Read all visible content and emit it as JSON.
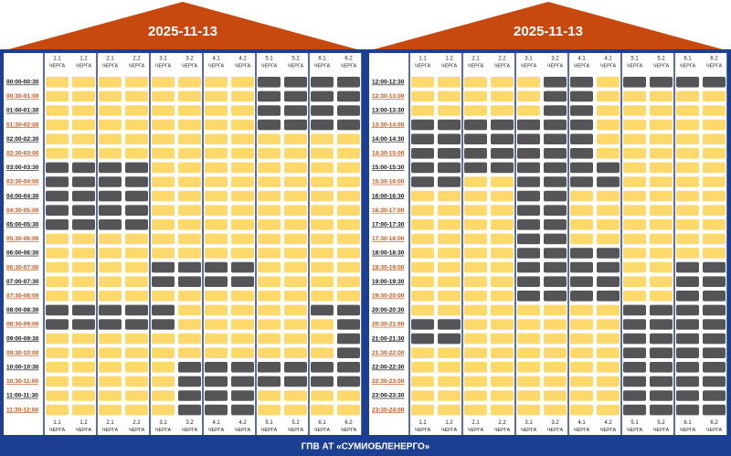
{
  "panels": [
    {
      "date": "2025-11-13",
      "columns": [
        "1.1",
        "1.2",
        "2.1",
        "2.2",
        "3.1",
        "3.2",
        "4.1",
        "4.2",
        "5.1",
        "5.2",
        "6.1",
        "6.2"
      ],
      "column_word": "ЧЕРГА",
      "rows": [
        {
          "time": "00:00-00:30",
          "off": [
            0,
            0,
            0,
            0,
            0,
            0,
            0,
            0,
            1,
            1,
            1,
            1
          ]
        },
        {
          "time": "00:30-01:00",
          "off": [
            0,
            0,
            0,
            0,
            0,
            0,
            0,
            0,
            1,
            1,
            1,
            1
          ]
        },
        {
          "time": "01:00-01:30",
          "off": [
            0,
            0,
            0,
            0,
            0,
            0,
            0,
            0,
            1,
            1,
            1,
            1
          ]
        },
        {
          "time": "01:30-02:00",
          "off": [
            0,
            0,
            0,
            0,
            0,
            0,
            0,
            0,
            1,
            1,
            1,
            1
          ]
        },
        {
          "time": "02:00-02:30",
          "off": [
            0,
            0,
            0,
            0,
            0,
            0,
            0,
            0,
            0,
            0,
            0,
            0
          ]
        },
        {
          "time": "02:30-03:00",
          "off": [
            0,
            0,
            0,
            0,
            0,
            0,
            0,
            0,
            0,
            0,
            0,
            0
          ]
        },
        {
          "time": "03:00-03:30",
          "off": [
            1,
            1,
            1,
            1,
            0,
            0,
            0,
            0,
            0,
            0,
            0,
            0
          ]
        },
        {
          "time": "03:30-04:00",
          "off": [
            1,
            1,
            1,
            1,
            0,
            0,
            0,
            0,
            0,
            0,
            0,
            0
          ]
        },
        {
          "time": "04:00-04:30",
          "off": [
            1,
            1,
            1,
            1,
            0,
            0,
            0,
            0,
            0,
            0,
            0,
            0
          ]
        },
        {
          "time": "04:30-05:00",
          "off": [
            1,
            1,
            1,
            1,
            0,
            0,
            0,
            0,
            0,
            0,
            0,
            0
          ]
        },
        {
          "time": "05:00-05:30",
          "off": [
            1,
            1,
            1,
            1,
            0,
            0,
            0,
            0,
            0,
            0,
            0,
            0
          ]
        },
        {
          "time": "05:30-06:00",
          "off": [
            0,
            0,
            0,
            0,
            0,
            0,
            0,
            0,
            0,
            0,
            0,
            0
          ]
        },
        {
          "time": "06:00-06:30",
          "off": [
            0,
            0,
            0,
            0,
            0,
            0,
            0,
            0,
            0,
            0,
            0,
            0
          ]
        },
        {
          "time": "06:30-07:00",
          "off": [
            0,
            0,
            0,
            0,
            1,
            1,
            1,
            1,
            0,
            0,
            0,
            0
          ]
        },
        {
          "time": "07:00-07:30",
          "off": [
            0,
            0,
            0,
            0,
            1,
            1,
            1,
            1,
            0,
            0,
            0,
            0
          ]
        },
        {
          "time": "07:30-08:00",
          "off": [
            0,
            0,
            0,
            0,
            0,
            0,
            0,
            0,
            0,
            0,
            0,
            0
          ]
        },
        {
          "time": "08:00-08:30",
          "off": [
            1,
            1,
            1,
            1,
            1,
            0,
            0,
            0,
            0,
            0,
            1,
            1
          ]
        },
        {
          "time": "08:30-09:00",
          "off": [
            1,
            1,
            1,
            1,
            1,
            0,
            0,
            0,
            0,
            0,
            0,
            1
          ]
        },
        {
          "time": "09:00-09:30",
          "off": [
            0,
            0,
            0,
            0,
            0,
            0,
            0,
            0,
            0,
            0,
            0,
            1
          ]
        },
        {
          "time": "09:30-10:00",
          "off": [
            0,
            0,
            0,
            0,
            0,
            0,
            0,
            0,
            0,
            0,
            0,
            1
          ]
        },
        {
          "time": "10:00-10:30",
          "off": [
            0,
            0,
            0,
            0,
            0,
            1,
            1,
            1,
            1,
            1,
            1,
            1
          ]
        },
        {
          "time": "10:30-11:00",
          "off": [
            0,
            0,
            0,
            0,
            0,
            1,
            1,
            1,
            1,
            1,
            1,
            1
          ]
        },
        {
          "time": "11:00-11:30",
          "off": [
            0,
            0,
            0,
            0,
            0,
            1,
            1,
            1,
            0,
            0,
            0,
            0
          ]
        },
        {
          "time": "11:30-12:00",
          "off": [
            0,
            0,
            0,
            0,
            0,
            1,
            1,
            1,
            0,
            0,
            0,
            0
          ]
        }
      ]
    },
    {
      "date": "2025-11-13",
      "columns": [
        "1.1",
        "1.2",
        "2.1",
        "2.2",
        "3.1",
        "3.2",
        "4.1",
        "4.2",
        "5.1",
        "5.2",
        "6.1",
        "6.2"
      ],
      "column_word": "ЧЕРГА",
      "rows": [
        {
          "time": "12:00-12:30",
          "off": [
            0,
            0,
            0,
            0,
            0,
            1,
            1,
            0,
            1,
            1,
            1,
            1
          ]
        },
        {
          "time": "12:30-13:00",
          "off": [
            0,
            0,
            0,
            0,
            0,
            1,
            1,
            0,
            0,
            0,
            0,
            0
          ]
        },
        {
          "time": "13:00-13:30",
          "off": [
            0,
            0,
            0,
            0,
            0,
            1,
            1,
            0,
            0,
            0,
            0,
            0
          ]
        },
        {
          "time": "13:30-14:00",
          "off": [
            1,
            1,
            1,
            1,
            1,
            1,
            1,
            0,
            0,
            0,
            0,
            0
          ]
        },
        {
          "time": "14:00-14:30",
          "off": [
            1,
            1,
            1,
            1,
            1,
            1,
            1,
            0,
            0,
            0,
            0,
            0
          ]
        },
        {
          "time": "14:30-15:00",
          "off": [
            1,
            1,
            1,
            1,
            1,
            1,
            1,
            0,
            0,
            0,
            0,
            0
          ]
        },
        {
          "time": "15:00-15:30",
          "off": [
            1,
            1,
            1,
            1,
            1,
            1,
            1,
            1,
            0,
            0,
            0,
            0
          ]
        },
        {
          "time": "15:30-16:00",
          "off": [
            1,
            1,
            0,
            0,
            1,
            1,
            1,
            1,
            0,
            0,
            0,
            0
          ]
        },
        {
          "time": "16:00-16:30",
          "off": [
            0,
            0,
            0,
            0,
            1,
            1,
            0,
            0,
            0,
            0,
            0,
            0
          ]
        },
        {
          "time": "16:30-17:00",
          "off": [
            0,
            0,
            0,
            0,
            1,
            1,
            0,
            0,
            0,
            0,
            0,
            0
          ]
        },
        {
          "time": "17:00-17:30",
          "off": [
            0,
            0,
            0,
            0,
            1,
            1,
            0,
            0,
            0,
            0,
            0,
            0
          ]
        },
        {
          "time": "17:30-18:00",
          "off": [
            0,
            0,
            0,
            0,
            1,
            1,
            0,
            0,
            0,
            0,
            0,
            0
          ]
        },
        {
          "time": "18:00-18:30",
          "off": [
            0,
            0,
            0,
            0,
            1,
            1,
            1,
            1,
            0,
            0,
            0,
            0
          ]
        },
        {
          "time": "18:30-19:00",
          "off": [
            0,
            0,
            0,
            0,
            1,
            1,
            1,
            1,
            0,
            0,
            1,
            1
          ]
        },
        {
          "time": "19:00-19:30",
          "off": [
            0,
            0,
            0,
            0,
            1,
            1,
            1,
            1,
            0,
            0,
            1,
            1
          ]
        },
        {
          "time": "19:30-20:00",
          "off": [
            0,
            0,
            0,
            0,
            1,
            1,
            1,
            1,
            0,
            0,
            1,
            1
          ]
        },
        {
          "time": "20:00-20:30",
          "off": [
            0,
            0,
            0,
            0,
            0,
            0,
            0,
            0,
            1,
            1,
            1,
            1
          ]
        },
        {
          "time": "20:30-21:00",
          "off": [
            1,
            1,
            0,
            0,
            0,
            0,
            0,
            0,
            1,
            1,
            1,
            1
          ]
        },
        {
          "time": "21:00-21:30",
          "off": [
            1,
            1,
            0,
            0,
            0,
            0,
            0,
            0,
            1,
            1,
            1,
            1
          ]
        },
        {
          "time": "21:30-22:00",
          "off": [
            0,
            0,
            0,
            0,
            0,
            0,
            0,
            0,
            1,
            1,
            1,
            1
          ]
        },
        {
          "time": "22:00-22:30",
          "off": [
            0,
            0,
            0,
            0,
            0,
            0,
            0,
            0,
            1,
            1,
            1,
            1
          ]
        },
        {
          "time": "22:30-23:00",
          "off": [
            0,
            0,
            0,
            0,
            0,
            0,
            0,
            0,
            1,
            1,
            1,
            1
          ]
        },
        {
          "time": "23:00-23:30",
          "off": [
            0,
            0,
            0,
            0,
            0,
            0,
            0,
            0,
            1,
            1,
            1,
            1
          ]
        },
        {
          "time": "23:30-24:00",
          "off": [
            0,
            0,
            0,
            0,
            0,
            0,
            0,
            0,
            1,
            1,
            1,
            1
          ]
        }
      ]
    }
  ],
  "footer": "ГПВ АТ «СУМИОБЛЕНЕРГО»"
}
